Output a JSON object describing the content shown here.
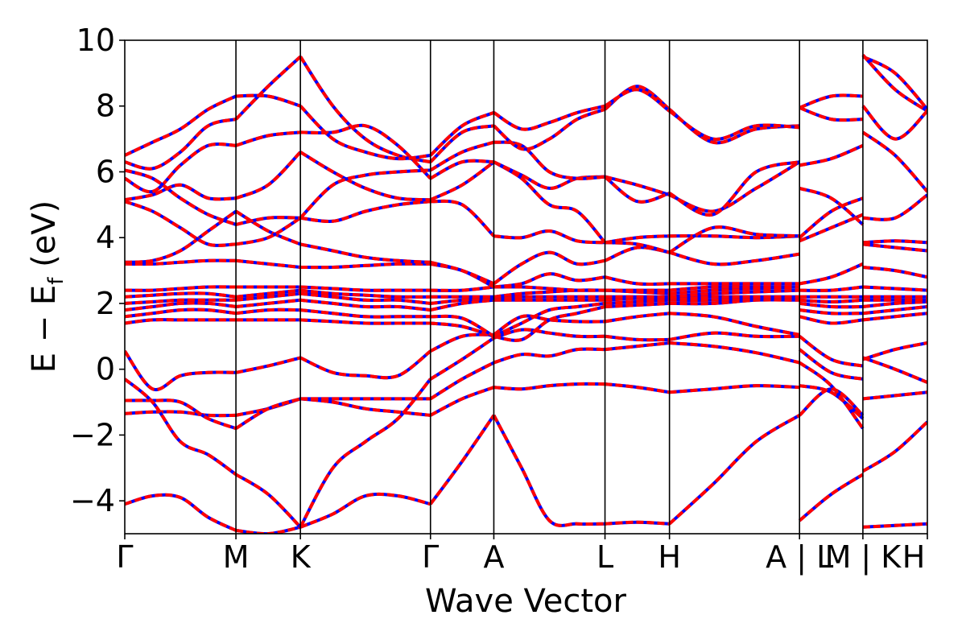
{
  "chart_data": {
    "type": "line",
    "xlabel": "Wave Vector",
    "ylabel_main": "E − E",
    "ylabel_sub": "f",
    "ylabel_unit": " (eV)",
    "ylim": [
      -5,
      10
    ],
    "yticks": [
      -4,
      -2,
      0,
      2,
      4,
      6,
      8,
      10
    ],
    "ytick_labels": [
      "−4",
      "−2",
      "0",
      "2",
      "4",
      "6",
      "8",
      "10"
    ],
    "k_path": [
      {
        "label": "Γ",
        "k": 0
      },
      {
        "label": "M",
        "k": 1
      },
      {
        "label": "K",
        "k": 1.58
      },
      {
        "label": "Γ",
        "k": 2.75
      },
      {
        "label": "A",
        "k": 3.32
      },
      {
        "label": "L",
        "k": 4.32
      },
      {
        "label": "H",
        "k": 4.9
      },
      {
        "label": "A | L",
        "k": 6.07
      },
      {
        "label": "M | K",
        "k": 6.64
      },
      {
        "label": "H",
        "k": 7.22
      }
    ],
    "series_colors": {
      "overlay": "#ff0000",
      "underlay": "#0000ff"
    },
    "segments": [
      {
        "k0": 0,
        "k1": 1,
        "bands": [
          [
            -4.1,
            -3.85,
            -3.9,
            -4.5,
            -4.9
          ],
          [
            -1.35,
            -1.3,
            -1.3,
            -1.4,
            -1.4
          ],
          [
            -0.95,
            -0.95,
            -1.0,
            -1.5,
            -1.8
          ],
          [
            -0.3,
            -1.0,
            -2.2,
            -2.6,
            -3.2
          ],
          [
            0.55,
            -0.6,
            -0.2,
            -0.1,
            -0.1
          ],
          [
            1.4,
            1.5,
            1.5,
            1.5,
            1.5
          ],
          [
            1.6,
            1.7,
            1.8,
            1.8,
            1.7
          ],
          [
            1.8,
            1.9,
            2.0,
            2.0,
            1.9
          ],
          [
            2.0,
            2.05,
            2.1,
            2.1,
            2.1
          ],
          [
            2.2,
            2.25,
            2.3,
            2.3,
            2.2
          ],
          [
            2.4,
            2.4,
            2.45,
            2.5,
            2.5
          ],
          [
            3.2,
            3.2,
            3.25,
            3.3,
            3.3
          ],
          [
            3.25,
            3.3,
            3.6,
            4.2,
            4.8
          ],
          [
            5.1,
            4.8,
            4.3,
            3.8,
            3.8
          ],
          [
            5.15,
            5.3,
            5.6,
            5.2,
            5.2
          ],
          [
            5.8,
            5.4,
            6.2,
            6.8,
            6.8
          ],
          [
            6.05,
            5.8,
            5.2,
            4.7,
            4.4
          ],
          [
            6.3,
            6.1,
            6.6,
            7.4,
            7.6
          ],
          [
            6.5,
            6.9,
            7.3,
            7.9,
            8.3
          ]
        ]
      },
      {
        "k0": 1,
        "k1": 1.58,
        "bands": [
          [
            -4.9,
            -5.0,
            -4.8
          ],
          [
            -1.4,
            -1.2,
            -0.9
          ],
          [
            -1.8,
            -1.2,
            -0.9
          ],
          [
            -3.2,
            -3.8,
            -4.8
          ],
          [
            -0.1,
            0.1,
            0.35
          ],
          [
            1.5,
            1.5,
            1.5
          ],
          [
            1.7,
            1.8,
            1.8
          ],
          [
            1.9,
            2.0,
            2.1
          ],
          [
            2.1,
            2.2,
            2.3
          ],
          [
            2.2,
            2.3,
            2.4
          ],
          [
            2.5,
            2.5,
            2.5
          ],
          [
            3.3,
            3.2,
            3.1
          ],
          [
            4.8,
            4.2,
            3.8
          ],
          [
            3.8,
            4.0,
            4.6
          ],
          [
            5.2,
            5.6,
            6.6
          ],
          [
            6.8,
            7.1,
            7.2
          ],
          [
            4.4,
            4.6,
            4.6
          ],
          [
            7.6,
            8.6,
            9.5
          ],
          [
            8.3,
            8.3,
            8.0
          ]
        ]
      },
      {
        "k0": 1.58,
        "k1": 2.75,
        "bands": [
          [
            -4.8,
            -4.4,
            -3.85,
            -3.85,
            -4.1
          ],
          [
            -0.9,
            -1.0,
            -1.2,
            -1.3,
            -1.4
          ],
          [
            -0.9,
            -0.9,
            -0.9,
            -0.9,
            -0.9
          ],
          [
            -4.8,
            -3.0,
            -2.2,
            -1.5,
            -0.3
          ],
          [
            0.35,
            -0.1,
            -0.2,
            -0.2,
            0.55
          ],
          [
            1.5,
            1.45,
            1.4,
            1.4,
            1.4
          ],
          [
            1.8,
            1.7,
            1.6,
            1.6,
            1.6
          ],
          [
            2.1,
            2.0,
            1.9,
            1.9,
            1.8
          ],
          [
            2.3,
            2.2,
            2.1,
            2.1,
            2.0
          ],
          [
            2.4,
            2.3,
            2.25,
            2.2,
            2.2
          ],
          [
            2.5,
            2.45,
            2.4,
            2.4,
            2.4
          ],
          [
            3.1,
            3.1,
            3.15,
            3.2,
            3.2
          ],
          [
            3.8,
            3.6,
            3.4,
            3.3,
            3.25
          ],
          [
            4.6,
            4.5,
            4.8,
            5.0,
            5.1
          ],
          [
            6.6,
            6.0,
            5.5,
            5.2,
            5.15
          ],
          [
            7.2,
            7.2,
            7.4,
            6.8,
            5.8
          ],
          [
            4.6,
            5.6,
            5.9,
            6.0,
            6.05
          ],
          [
            9.5,
            8.0,
            7.0,
            6.5,
            6.3
          ],
          [
            8.0,
            7.0,
            6.6,
            6.4,
            6.5
          ]
        ]
      },
      {
        "k0": 2.75,
        "k1": 3.32,
        "bands": [
          [
            -4.1,
            -2.8,
            -1.4
          ],
          [
            -1.4,
            -0.9,
            -0.55
          ],
          [
            -0.9,
            -0.3,
            0.2
          ],
          [
            -0.3,
            0.3,
            0.95
          ],
          [
            0.55,
            1.0,
            1.05
          ],
          [
            1.4,
            1.3,
            1.0
          ],
          [
            1.6,
            1.55,
            1.0
          ],
          [
            1.8,
            2.0,
            2.1
          ],
          [
            2.0,
            2.1,
            2.15
          ],
          [
            2.2,
            2.2,
            2.2
          ],
          [
            2.4,
            2.4,
            2.5
          ],
          [
            3.2,
            3.0,
            2.5
          ],
          [
            3.25,
            3.0,
            2.6
          ],
          [
            5.1,
            5.0,
            4.05
          ],
          [
            5.15,
            5.6,
            6.3
          ],
          [
            5.8,
            6.3,
            6.3
          ],
          [
            6.05,
            6.6,
            6.9
          ],
          [
            6.3,
            7.2,
            7.4
          ],
          [
            6.5,
            7.4,
            7.8
          ]
        ]
      },
      {
        "k0": 3.32,
        "k1": 4.32,
        "bands": [
          [
            -1.4,
            -3.0,
            -4.6,
            -4.7,
            -4.7
          ],
          [
            -0.55,
            -0.6,
            -0.5,
            -0.45,
            -0.45
          ],
          [
            0.2,
            0.45,
            0.4,
            0.6,
            0.6
          ],
          [
            0.95,
            1.2,
            1.1,
            1.0,
            1.0
          ],
          [
            1.05,
            1.6,
            1.5,
            1.45,
            1.45
          ],
          [
            1.0,
            0.9,
            1.5,
            1.7,
            1.9
          ],
          [
            1.0,
            1.4,
            1.8,
            1.9,
            2.0
          ],
          [
            2.1,
            2.1,
            2.1,
            2.1,
            2.1
          ],
          [
            2.15,
            2.2,
            2.2,
            2.2,
            2.2
          ],
          [
            2.2,
            2.3,
            2.35,
            2.4,
            2.4
          ],
          [
            2.5,
            2.5,
            2.45,
            2.4,
            2.4
          ],
          [
            2.5,
            2.6,
            2.9,
            2.7,
            2.8
          ],
          [
            2.6,
            3.2,
            3.55,
            3.2,
            3.3
          ],
          [
            4.05,
            4.0,
            4.2,
            3.9,
            3.85
          ],
          [
            6.3,
            5.8,
            5.0,
            4.8,
            3.85
          ],
          [
            6.3,
            5.9,
            5.5,
            5.8,
            5.85
          ],
          [
            6.9,
            6.8,
            6.0,
            5.8,
            5.85
          ],
          [
            7.4,
            6.7,
            7.0,
            7.6,
            7.9
          ],
          [
            7.8,
            7.3,
            7.5,
            7.8,
            8.0
          ]
        ]
      },
      {
        "k0": 4.32,
        "k1": 4.9,
        "bands": [
          [
            -4.7,
            -4.65,
            -4.7
          ],
          [
            -0.45,
            -0.55,
            -0.7
          ],
          [
            0.6,
            0.7,
            0.8
          ],
          [
            1.0,
            0.9,
            0.9
          ],
          [
            1.45,
            1.6,
            1.7
          ],
          [
            1.9,
            1.95,
            2.0
          ],
          [
            2.0,
            2.05,
            2.1
          ],
          [
            2.1,
            2.15,
            2.15
          ],
          [
            2.2,
            2.2,
            2.2
          ],
          [
            2.4,
            2.35,
            2.3
          ],
          [
            2.4,
            2.4,
            2.4
          ],
          [
            2.8,
            2.6,
            2.6
          ],
          [
            3.3,
            3.7,
            3.55
          ],
          [
            3.85,
            4.0,
            4.05
          ],
          [
            3.85,
            3.8,
            3.55
          ],
          [
            5.85,
            5.6,
            5.3
          ],
          [
            5.85,
            5.1,
            5.35
          ],
          [
            7.9,
            8.6,
            7.9
          ],
          [
            8.0,
            8.5,
            7.85
          ]
        ]
      },
      {
        "k0": 4.9,
        "k1": 6.07,
        "bands": [
          [
            -4.7,
            -3.5,
            -2.2,
            -1.4
          ],
          [
            -0.7,
            -0.6,
            -0.5,
            -0.55
          ],
          [
            0.8,
            0.7,
            0.5,
            0.2
          ],
          [
            0.9,
            1.1,
            1.0,
            1.0
          ],
          [
            1.7,
            1.6,
            1.3,
            1.05
          ],
          [
            2.0,
            2.0,
            2.1,
            2.1
          ],
          [
            2.1,
            2.1,
            2.15,
            2.15
          ],
          [
            2.15,
            2.2,
            2.2,
            2.2
          ],
          [
            2.2,
            2.3,
            2.35,
            2.4
          ],
          [
            2.3,
            2.4,
            2.45,
            2.5
          ],
          [
            2.4,
            2.5,
            2.5,
            2.5
          ],
          [
            2.6,
            2.6,
            2.6,
            2.6
          ],
          [
            3.55,
            3.2,
            3.3,
            3.5
          ],
          [
            4.05,
            4.05,
            4.0,
            4.05
          ],
          [
            3.55,
            4.3,
            4.1,
            4.05
          ],
          [
            5.3,
            4.8,
            5.5,
            6.3
          ],
          [
            5.35,
            4.7,
            6.0,
            6.3
          ],
          [
            7.9,
            6.9,
            7.3,
            7.4
          ],
          [
            7.85,
            7.0,
            7.4,
            7.35
          ]
        ]
      },
      {
        "k0": 6.07,
        "k1": 6.64,
        "bands": [
          [
            -4.6,
            -3.8,
            -3.2
          ],
          [
            -1.4,
            -0.6,
            -1.4
          ],
          [
            -0.5,
            -0.7,
            -1.5
          ],
          [
            0.2,
            -0.5,
            -1.8
          ],
          [
            0.6,
            -0.1,
            -0.3
          ],
          [
            1.0,
            0.3,
            0.1
          ],
          [
            1.6,
            1.4,
            1.5
          ],
          [
            1.8,
            1.7,
            1.7
          ],
          [
            2.0,
            1.9,
            1.9
          ],
          [
            2.1,
            2.05,
            2.1
          ],
          [
            2.2,
            2.2,
            2.2
          ],
          [
            2.4,
            2.4,
            2.5
          ],
          [
            2.6,
            2.8,
            3.2
          ],
          [
            3.9,
            4.3,
            4.7
          ],
          [
            4.0,
            4.8,
            5.2
          ],
          [
            5.5,
            5.2,
            4.4
          ],
          [
            6.2,
            6.4,
            6.8
          ],
          [
            7.95,
            7.6,
            7.6
          ],
          [
            7.95,
            8.3,
            8.3
          ]
        ]
      },
      {
        "k0": 6.64,
        "k1": 7.22,
        "bands": [
          [
            -4.8,
            -4.75,
            -4.7
          ],
          [
            -3.1,
            -2.5,
            -1.6
          ],
          [
            -0.9,
            -0.8,
            -0.7
          ],
          [
            0.35,
            0.0,
            -0.4
          ],
          [
            0.3,
            0.6,
            0.8
          ],
          [
            1.5,
            1.6,
            1.7
          ],
          [
            1.7,
            1.8,
            1.9
          ],
          [
            1.9,
            2.0,
            2.05
          ],
          [
            2.1,
            2.1,
            2.1
          ],
          [
            2.2,
            2.2,
            2.2
          ],
          [
            2.5,
            2.45,
            2.4
          ],
          [
            3.1,
            3.0,
            2.8
          ],
          [
            3.8,
            3.7,
            3.6
          ],
          [
            3.85,
            3.9,
            3.85
          ],
          [
            4.6,
            4.6,
            5.3
          ],
          [
            7.2,
            6.5,
            5.4
          ],
          [
            8.0,
            7.0,
            7.85
          ],
          [
            9.5,
            9.0,
            7.9
          ],
          [
            9.55,
            8.5,
            7.85
          ]
        ]
      }
    ]
  }
}
